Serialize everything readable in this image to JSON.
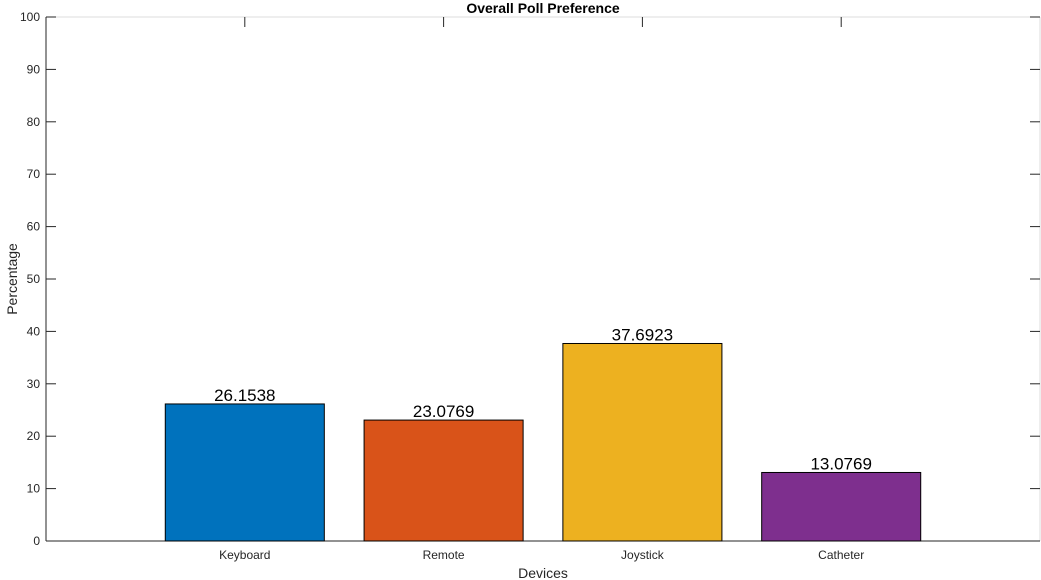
{
  "chart_data": {
    "type": "bar",
    "title": "Overall Poll Preference",
    "xlabel": "Devices",
    "ylabel": "Percentage",
    "ylim": [
      0,
      100
    ],
    "yticks": [
      0,
      10,
      20,
      30,
      40,
      50,
      60,
      70,
      80,
      90,
      100
    ],
    "xlim": [
      0,
      5
    ],
    "categories": [
      "Keyboard",
      "Remote",
      "Joystick",
      "Catheter"
    ],
    "values": [
      26.1538,
      23.0769,
      37.6923,
      13.0769
    ],
    "data_labels": [
      "26.1538",
      "23.0769",
      "37.6923",
      "13.0769"
    ],
    "colors": [
      "#0072BD",
      "#D95319",
      "#EDB120",
      "#7E2F8E"
    ],
    "bar_edge_color": "#000000",
    "grid": false,
    "legend": "none"
  }
}
